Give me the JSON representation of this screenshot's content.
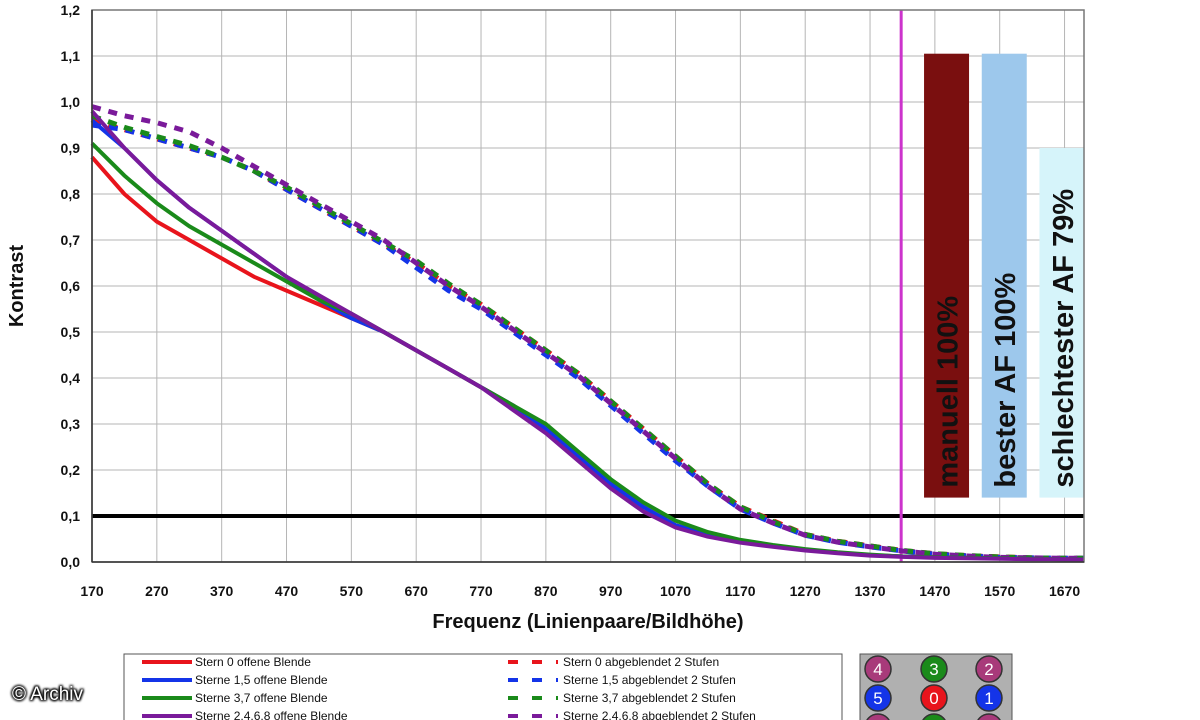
{
  "chart_data": {
    "type": "line",
    "title": "",
    "xlabel": "Frequenz (Linienpaare/Bildhöhe)",
    "ylabel": "Kontrast",
    "xlim": [
      170,
      1700
    ],
    "ylim": [
      0,
      1.2
    ],
    "x_ticks": [
      "170",
      "270",
      "370",
      "470",
      "570",
      "670",
      "770",
      "870",
      "970",
      "1070",
      "1170",
      "1270",
      "1370",
      "1470",
      "1570",
      "1670"
    ],
    "y_ticks": [
      "0,0",
      "0,1",
      "0,2",
      "0,3",
      "0,4",
      "0,5",
      "0,6",
      "0,7",
      "0,8",
      "0,9",
      "1,0",
      "1,1",
      "1,2"
    ],
    "grid": true,
    "threshold_line": {
      "y": 0.1,
      "color": "#000000"
    },
    "vertical_marker": {
      "x": 1418,
      "color": "#cc33cc"
    },
    "series": [
      {
        "name": "Stern 0 offene Blende",
        "color": "#e8141c",
        "style": "solid",
        "x": [
          170,
          220,
          270,
          320,
          370,
          420,
          470,
          520,
          570,
          620,
          670,
          720,
          770,
          820,
          870,
          920,
          970,
          1020,
          1070,
          1120,
          1170,
          1220,
          1270,
          1320,
          1370,
          1420,
          1470,
          1520,
          1570,
          1620,
          1670,
          1700
        ],
        "y": [
          0.88,
          0.8,
          0.74,
          0.7,
          0.66,
          0.62,
          0.59,
          0.56,
          0.53,
          0.5,
          0.46,
          0.42,
          0.38,
          0.34,
          0.29,
          0.23,
          0.17,
          0.12,
          0.08,
          0.06,
          0.045,
          0.035,
          0.027,
          0.02,
          0.015,
          0.012,
          0.01,
          0.009,
          0.008,
          0.007,
          0.006,
          0.006
        ]
      },
      {
        "name": "Sterne 1,5 offene Blende",
        "color": "#1434e8",
        "style": "solid",
        "x": [
          170,
          220,
          270,
          320,
          370,
          420,
          470,
          520,
          570,
          620,
          670,
          720,
          770,
          820,
          870,
          920,
          970,
          1020,
          1070,
          1120,
          1170,
          1220,
          1270,
          1320,
          1370,
          1420,
          1470,
          1520,
          1570,
          1620,
          1670,
          1700
        ],
        "y": [
          0.96,
          0.9,
          0.83,
          0.77,
          0.72,
          0.67,
          0.62,
          0.57,
          0.53,
          0.5,
          0.46,
          0.42,
          0.38,
          0.34,
          0.29,
          0.23,
          0.17,
          0.12,
          0.08,
          0.06,
          0.045,
          0.035,
          0.027,
          0.02,
          0.015,
          0.012,
          0.01,
          0.009,
          0.008,
          0.007,
          0.006,
          0.006
        ]
      },
      {
        "name": "Sterne 3,7 offene Blende",
        "color": "#1a8a1a",
        "style": "solid",
        "x": [
          170,
          220,
          270,
          320,
          370,
          420,
          470,
          520,
          570,
          620,
          670,
          720,
          770,
          820,
          870,
          920,
          970,
          1020,
          1070,
          1120,
          1170,
          1220,
          1270,
          1320,
          1370,
          1420,
          1470,
          1520,
          1570,
          1620,
          1670,
          1700
        ],
        "y": [
          0.91,
          0.84,
          0.78,
          0.73,
          0.69,
          0.65,
          0.61,
          0.57,
          0.54,
          0.5,
          0.46,
          0.42,
          0.38,
          0.34,
          0.3,
          0.24,
          0.18,
          0.13,
          0.09,
          0.065,
          0.048,
          0.037,
          0.028,
          0.021,
          0.016,
          0.012,
          0.01,
          0.009,
          0.008,
          0.007,
          0.006,
          0.006
        ]
      },
      {
        "name": "Sterne 2,4,6,8 offene Blende",
        "color": "#7a1a9a",
        "style": "solid",
        "x": [
          170,
          220,
          270,
          320,
          370,
          420,
          470,
          520,
          570,
          620,
          670,
          720,
          770,
          820,
          870,
          920,
          970,
          1020,
          1070,
          1120,
          1170,
          1220,
          1270,
          1320,
          1370,
          1420,
          1470,
          1520,
          1570,
          1620,
          1670,
          1700
        ],
        "y": [
          0.98,
          0.9,
          0.83,
          0.77,
          0.72,
          0.67,
          0.62,
          0.58,
          0.54,
          0.5,
          0.46,
          0.42,
          0.38,
          0.33,
          0.28,
          0.22,
          0.16,
          0.11,
          0.075,
          0.055,
          0.042,
          0.033,
          0.025,
          0.019,
          0.014,
          0.011,
          0.009,
          0.008,
          0.007,
          0.006,
          0.006,
          0.005
        ]
      },
      {
        "name": "Stern 0 abgeblendet 2 Stufen",
        "color": "#e8141c",
        "style": "dashed",
        "x": [
          170,
          220,
          270,
          320,
          370,
          420,
          470,
          520,
          570,
          620,
          670,
          720,
          770,
          820,
          870,
          920,
          970,
          1020,
          1070,
          1120,
          1170,
          1220,
          1270,
          1320,
          1370,
          1420,
          1470,
          1520,
          1570,
          1620,
          1670,
          1700
        ],
        "y": [
          0.96,
          0.94,
          0.92,
          0.9,
          0.88,
          0.85,
          0.81,
          0.77,
          0.73,
          0.69,
          0.65,
          0.6,
          0.56,
          0.51,
          0.46,
          0.41,
          0.35,
          0.29,
          0.23,
          0.17,
          0.12,
          0.09,
          0.06,
          0.045,
          0.035,
          0.025,
          0.018,
          0.014,
          0.011,
          0.009,
          0.008,
          0.008
        ]
      },
      {
        "name": "Sterne 1,5 abgeblendet 2 Stufen",
        "color": "#1434e8",
        "style": "dashed",
        "x": [
          170,
          220,
          270,
          320,
          370,
          420,
          470,
          520,
          570,
          620,
          670,
          720,
          770,
          820,
          870,
          920,
          970,
          1020,
          1070,
          1120,
          1170,
          1220,
          1270,
          1320,
          1370,
          1420,
          1470,
          1520,
          1570,
          1620,
          1670,
          1700
        ],
        "y": [
          0.95,
          0.94,
          0.92,
          0.9,
          0.88,
          0.85,
          0.81,
          0.77,
          0.73,
          0.69,
          0.64,
          0.59,
          0.55,
          0.5,
          0.45,
          0.4,
          0.34,
          0.28,
          0.22,
          0.165,
          0.115,
          0.085,
          0.058,
          0.043,
          0.033,
          0.024,
          0.017,
          0.013,
          0.01,
          0.009,
          0.008,
          0.008
        ]
      },
      {
        "name": "Sterne 3,7 abgeblendet 2 Stufen",
        "color": "#1a8a1a",
        "style": "dashed",
        "x": [
          170,
          220,
          270,
          320,
          370,
          420,
          470,
          520,
          570,
          620,
          670,
          720,
          770,
          820,
          870,
          920,
          970,
          1020,
          1070,
          1120,
          1170,
          1220,
          1270,
          1320,
          1370,
          1420,
          1470,
          1520,
          1570,
          1620,
          1670,
          1700
        ],
        "y": [
          0.97,
          0.945,
          0.925,
          0.905,
          0.88,
          0.85,
          0.815,
          0.775,
          0.735,
          0.695,
          0.655,
          0.605,
          0.56,
          0.51,
          0.46,
          0.41,
          0.35,
          0.29,
          0.23,
          0.17,
          0.12,
          0.088,
          0.06,
          0.045,
          0.035,
          0.025,
          0.018,
          0.014,
          0.011,
          0.009,
          0.008,
          0.008
        ]
      },
      {
        "name": "Sterne 2,4,6,8 abgeblendet 2 Stufen",
        "color": "#7a1a9a",
        "style": "dashed",
        "x": [
          170,
          220,
          270,
          320,
          370,
          420,
          470,
          520,
          570,
          620,
          670,
          720,
          770,
          820,
          870,
          920,
          970,
          1020,
          1070,
          1120,
          1170,
          1220,
          1270,
          1320,
          1370,
          1420,
          1470,
          1520,
          1570,
          1620,
          1670,
          1700
        ],
        "y": [
          0.99,
          0.97,
          0.955,
          0.935,
          0.9,
          0.86,
          0.82,
          0.78,
          0.74,
          0.7,
          0.65,
          0.6,
          0.555,
          0.505,
          0.455,
          0.405,
          0.345,
          0.285,
          0.225,
          0.165,
          0.115,
          0.085,
          0.058,
          0.043,
          0.033,
          0.024,
          0.017,
          0.013,
          0.01,
          0.009,
          0.008,
          0.008
        ]
      }
    ],
    "bars": [
      {
        "label": "manuell 100%",
        "color": "#7a0f0f",
        "from": 0.14,
        "to": 1.105,
        "x_center": 1488
      },
      {
        "label": "bester AF 100%",
        "color": "#9dc8ec",
        "from": 0.14,
        "to": 1.105,
        "x_center": 1577
      },
      {
        "label": "schlechtester AF 79%",
        "color": "#d6f4fa",
        "from": 0.14,
        "to": 0.9,
        "x_center": 1666
      }
    ],
    "legend": {
      "position": "bottom",
      "items": [
        {
          "label": "Stern 0 offene Blende",
          "color": "#e8141c",
          "style": "solid"
        },
        {
          "label": "Sterne 1,5 offene Blende",
          "color": "#1434e8",
          "style": "solid"
        },
        {
          "label": "Sterne 3,7 offene Blende",
          "color": "#1a8a1a",
          "style": "solid"
        },
        {
          "label": "Sterne 2,4,6,8 offene Blende",
          "color": "#7a1a9a",
          "style": "solid"
        },
        {
          "label": "Stern 0 abgeblendet 2 Stufen",
          "color": "#e8141c",
          "style": "dashed"
        },
        {
          "label": "Sterne 1,5 abgeblendet 2 Stufen",
          "color": "#1434e8",
          "style": "dashed"
        },
        {
          "label": "Sterne 3,7 abgeblendet 2 Stufen",
          "color": "#1a8a1a",
          "style": "dashed"
        },
        {
          "label": "Sterne 2,4,6,8 abgeblendet 2 Stufen",
          "color": "#7a1a9a",
          "style": "dashed"
        }
      ]
    },
    "star_badges": [
      {
        "label": "4",
        "color": "#a83a7a"
      },
      {
        "label": "3",
        "color": "#1a8a1a"
      },
      {
        "label": "2",
        "color": "#a83a7a"
      },
      {
        "label": "5",
        "color": "#1434e8"
      },
      {
        "label": "0",
        "color": "#e8141c"
      },
      {
        "label": "1",
        "color": "#1434e8"
      }
    ]
  },
  "credit": "© Archiv"
}
